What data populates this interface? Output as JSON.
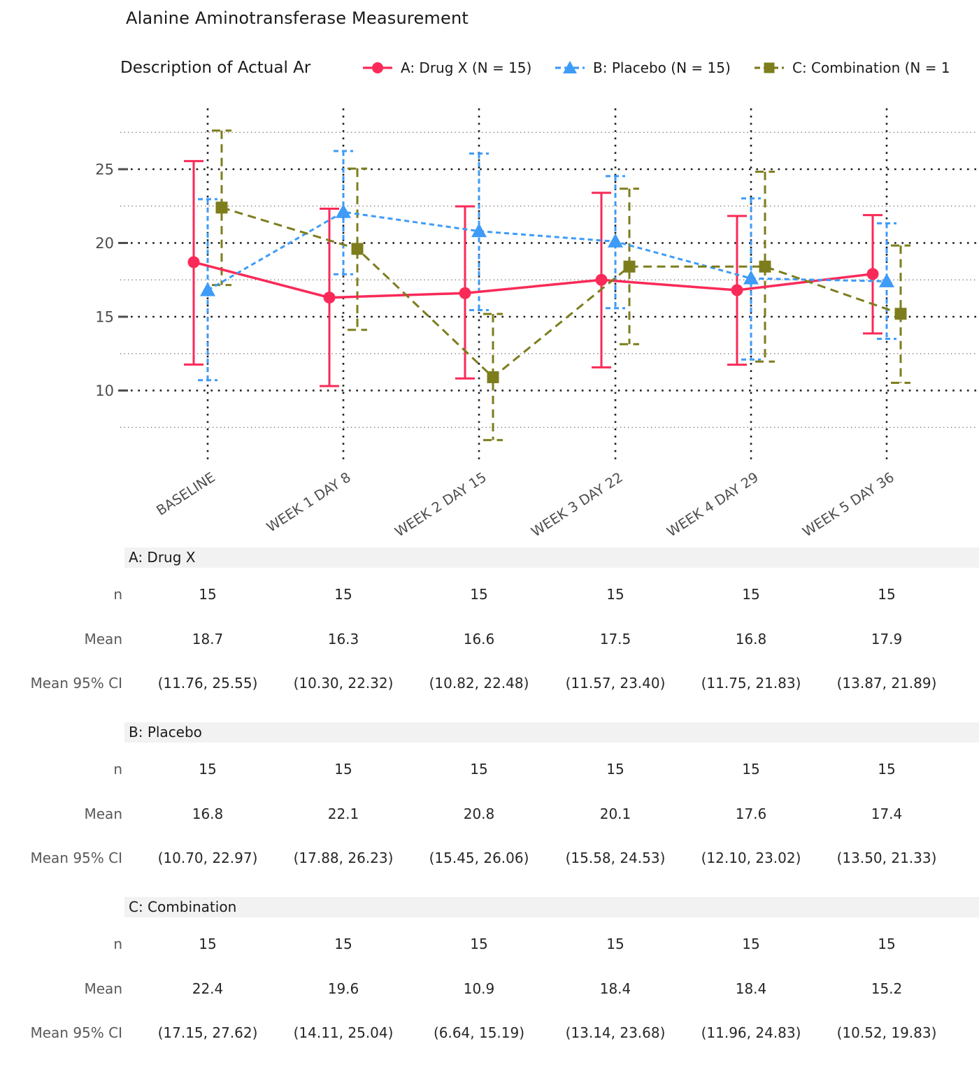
{
  "header": {
    "title": "Alanine Aminotransferase Measurement",
    "subtitle": "Description of Actual Ar"
  },
  "legend": [
    {
      "label": "A: Drug X (N = 15)",
      "marker": "circle",
      "line": "solid",
      "color": "#FA2A58"
    },
    {
      "label": "B: Placebo (N = 15)",
      "marker": "triangle",
      "line": "dashed",
      "color": "#3E9BF7"
    },
    {
      "label": "C: Combination (N = 1",
      "marker": "square",
      "line": "longdash",
      "color": "#7D7D1E"
    }
  ],
  "chart_data": {
    "type": "line",
    "x_categories": [
      "BASELINE",
      "WEEK 1 DAY 8",
      "WEEK 2 DAY 15",
      "WEEK 3 DAY 22",
      "WEEK 4 DAY 29",
      "WEEK 5 DAY 36"
    ],
    "y_ticks_major": [
      10,
      15,
      20,
      25
    ],
    "y_ticks_minor": [
      7.5,
      12.5,
      17.5,
      22.5,
      27.5
    ],
    "ylim": [
      6,
      28.5
    ],
    "grid": "dotted",
    "legend_position": "top",
    "series": [
      {
        "name": "A: Drug X",
        "marker": "circle",
        "dash": "solid",
        "color": "#FA2A58",
        "mean": [
          18.7,
          16.3,
          16.6,
          17.5,
          16.8,
          17.9
        ],
        "ci_low": [
          11.76,
          10.3,
          10.82,
          11.57,
          11.75,
          13.87
        ],
        "ci_high": [
          25.55,
          22.32,
          22.48,
          23.4,
          21.83,
          21.89
        ]
      },
      {
        "name": "B: Placebo",
        "marker": "triangle",
        "dash": "dashed",
        "color": "#3E9BF7",
        "mean": [
          16.8,
          22.1,
          20.8,
          20.1,
          17.6,
          17.4
        ],
        "ci_low": [
          10.7,
          17.88,
          15.45,
          15.58,
          12.1,
          13.5
        ],
        "ci_high": [
          22.97,
          26.23,
          26.06,
          24.53,
          23.02,
          21.33
        ]
      },
      {
        "name": "C: Combination",
        "marker": "square",
        "dash": "longdash",
        "color": "#7D7D1E",
        "mean": [
          22.4,
          19.6,
          10.9,
          18.4,
          18.4,
          15.2
        ],
        "ci_low": [
          17.15,
          14.11,
          6.64,
          13.14,
          11.96,
          10.52
        ],
        "ci_high": [
          27.62,
          25.04,
          15.19,
          23.68,
          24.83,
          19.83
        ]
      }
    ]
  },
  "table": {
    "sections": [
      {
        "header": "A: Drug X",
        "rows": [
          {
            "label": "n",
            "values": [
              "15",
              "15",
              "15",
              "15",
              "15",
              "15"
            ]
          },
          {
            "label": "Mean",
            "values": [
              "18.7",
              "16.3",
              "16.6",
              "17.5",
              "16.8",
              "17.9"
            ]
          },
          {
            "label": "Mean 95% CI",
            "values": [
              "(11.76, 25.55)",
              "(10.30, 22.32)",
              "(10.82, 22.48)",
              "(11.57, 23.40)",
              "(11.75, 21.83)",
              "(13.87, 21.89)"
            ]
          }
        ]
      },
      {
        "header": "B: Placebo",
        "rows": [
          {
            "label": "n",
            "values": [
              "15",
              "15",
              "15",
              "15",
              "15",
              "15"
            ]
          },
          {
            "label": "Mean",
            "values": [
              "16.8",
              "22.1",
              "20.8",
              "20.1",
              "17.6",
              "17.4"
            ]
          },
          {
            "label": "Mean 95% CI",
            "values": [
              "(10.70, 22.97)",
              "(17.88, 26.23)",
              "(15.45, 26.06)",
              "(15.58, 24.53)",
              "(12.10, 23.02)",
              "(13.50, 21.33)"
            ]
          }
        ]
      },
      {
        "header": "C: Combination",
        "rows": [
          {
            "label": "n",
            "values": [
              "15",
              "15",
              "15",
              "15",
              "15",
              "15"
            ]
          },
          {
            "label": "Mean",
            "values": [
              "22.4",
              "19.6",
              "10.9",
              "18.4",
              "18.4",
              "15.2"
            ]
          },
          {
            "label": "Mean 95% CI",
            "values": [
              "(17.15, 27.62)",
              "(14.11, 25.04)",
              "(6.64, 15.19)",
              "(13.14, 23.68)",
              "(11.96, 24.83)",
              "(10.52, 19.83)"
            ]
          }
        ]
      }
    ]
  },
  "colors": {
    "axis_text": "#4d4d4d",
    "major_grid": "#1a1a1a",
    "minor_grid": "#666666",
    "section_bar": "#f2f2f2",
    "value_text": "#262626",
    "label_text": "#595959"
  }
}
